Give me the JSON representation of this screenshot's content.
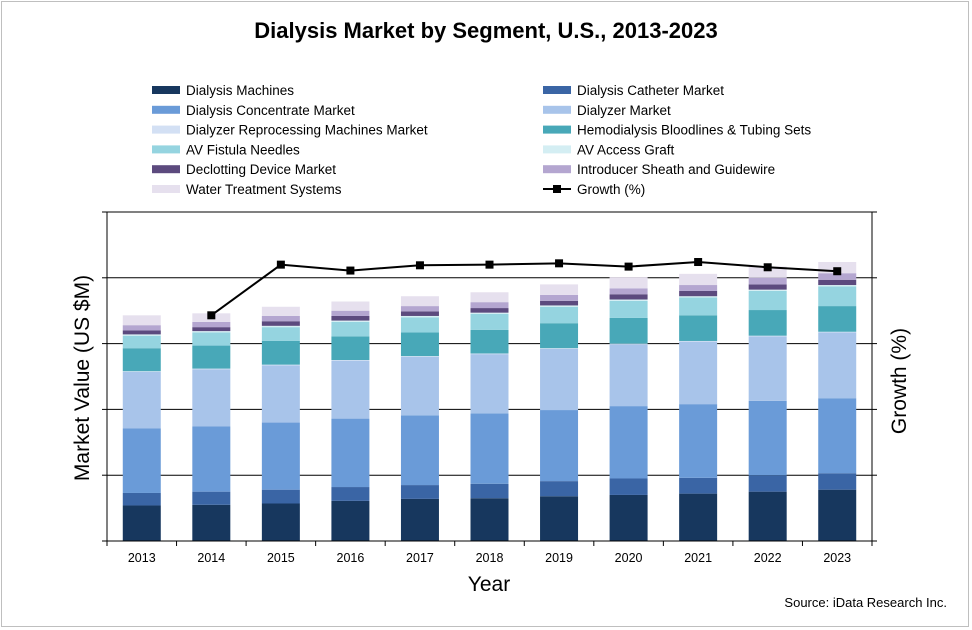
{
  "chart_data": {
    "type": "bar",
    "stacked": true,
    "title": "Dialysis Market by Segment, U.S., 2013-2023",
    "xlabel": "Year",
    "ylabel": "Market Value (US $M)",
    "y2label": "Growth (%)",
    "source": "Source: iData Research Inc.",
    "categories": [
      "2013",
      "2014",
      "2015",
      "2016",
      "2017",
      "2018",
      "2019",
      "2020",
      "2021",
      "2022",
      "2023"
    ],
    "ylim": [
      0,
      5
    ],
    "y2lim": [
      0,
      5
    ],
    "grid": true,
    "legend_position": "top",
    "series": [
      {
        "name": "Dialysis Machines",
        "color": "#17375e",
        "values": [
          0.54,
          0.55,
          0.57,
          0.61,
          0.64,
          0.65,
          0.68,
          0.7,
          0.72,
          0.75,
          0.78
        ]
      },
      {
        "name": "Dialysis Catheter Market",
        "color": "#3a65a5",
        "values": [
          0.19,
          0.2,
          0.21,
          0.21,
          0.21,
          0.22,
          0.23,
          0.25,
          0.24,
          0.25,
          0.25
        ]
      },
      {
        "name": "Dialysis Concentrate Market",
        "color": "#6a9bd8",
        "values": [
          0.98,
          0.99,
          1.02,
          1.04,
          1.06,
          1.07,
          1.08,
          1.1,
          1.12,
          1.13,
          1.14
        ]
      },
      {
        "name": "Dialyzer Market",
        "color": "#a8c4ea",
        "values": [
          0.86,
          0.87,
          0.87,
          0.88,
          0.89,
          0.9,
          0.93,
          0.94,
          0.95,
          0.98,
          1.0
        ]
      },
      {
        "name": "Dialyzer Reprocessing Machines Market",
        "color": "#d3e0f4",
        "values": [
          0.01,
          0.01,
          0.01,
          0.01,
          0.01,
          0.01,
          0.01,
          0.01,
          0.01,
          0.01,
          0.01
        ]
      },
      {
        "name": "Hemodialysis Bloodlines & Tubing Sets",
        "color": "#48a8b8",
        "values": [
          0.35,
          0.35,
          0.36,
          0.36,
          0.36,
          0.36,
          0.38,
          0.39,
          0.39,
          0.39,
          0.39
        ]
      },
      {
        "name": "AV Fistula Needles",
        "color": "#95d4e0",
        "values": [
          0.19,
          0.2,
          0.21,
          0.22,
          0.23,
          0.24,
          0.25,
          0.26,
          0.27,
          0.29,
          0.3
        ]
      },
      {
        "name": "AV Access Graft",
        "color": "#d4eef3",
        "values": [
          0.02,
          0.02,
          0.02,
          0.02,
          0.02,
          0.02,
          0.02,
          0.02,
          0.02,
          0.02,
          0.02
        ]
      },
      {
        "name": "Declotting Device Market",
        "color": "#5c4a7e",
        "values": [
          0.06,
          0.06,
          0.07,
          0.07,
          0.07,
          0.07,
          0.07,
          0.08,
          0.08,
          0.08,
          0.08
        ]
      },
      {
        "name": "Introducer Sheath and Guidewire",
        "color": "#b4a6d0",
        "values": [
          0.08,
          0.08,
          0.08,
          0.08,
          0.08,
          0.09,
          0.09,
          0.09,
          0.09,
          0.1,
          0.1
        ]
      },
      {
        "name": "Water Treatment Systems",
        "color": "#e6e0ee",
        "values": [
          0.15,
          0.13,
          0.14,
          0.14,
          0.15,
          0.15,
          0.16,
          0.17,
          0.17,
          0.17,
          0.17
        ]
      }
    ],
    "line_series": {
      "name": "Growth (%)",
      "color": "#000000",
      "values": [
        null,
        3.43,
        4.2,
        4.11,
        4.19,
        4.2,
        4.22,
        4.17,
        4.24,
        4.16,
        4.1
      ]
    }
  }
}
